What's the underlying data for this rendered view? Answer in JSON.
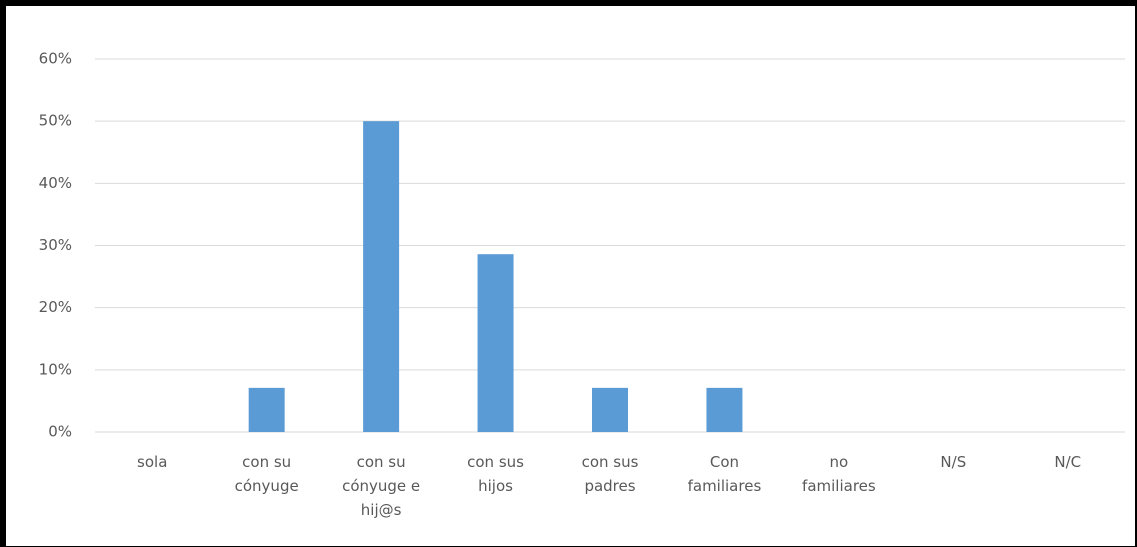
{
  "chart_data": {
    "type": "bar",
    "categories": [
      "sola",
      "con su cónyuge",
      "con su cónyuge e hij@s",
      "con sus hijos",
      "con sus padres",
      "Con familiares",
      "no familiares",
      "N/S",
      "N/C"
    ],
    "values": [
      0,
      7.1,
      50,
      28.6,
      7.1,
      7.1,
      0,
      0,
      0
    ],
    "color": "#5b9bd5",
    "ylim": [
      0,
      60
    ],
    "yticks": [
      {
        "value": 0,
        "label": "0%"
      },
      {
        "value": 10,
        "label": "10%"
      },
      {
        "value": 20,
        "label": "20%"
      },
      {
        "value": 30,
        "label": "30%"
      },
      {
        "value": 40,
        "label": "40%"
      },
      {
        "value": 50,
        "label": "50%"
      },
      {
        "value": 60,
        "label": "60%"
      }
    ],
    "grid": true
  }
}
